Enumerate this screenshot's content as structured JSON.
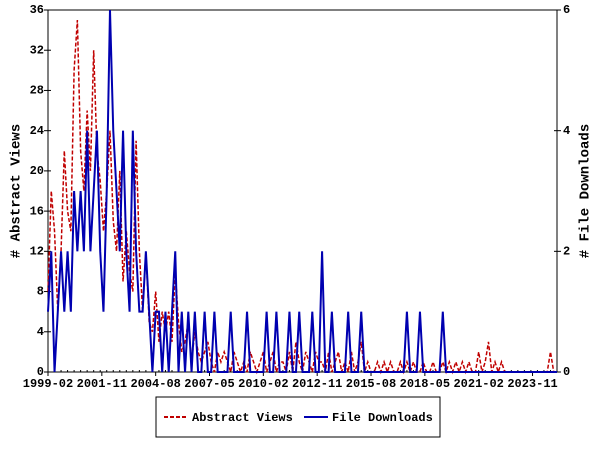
{
  "chart_data": {
    "type": "line",
    "x": [
      "1999-02",
      "1999-04",
      "1999-06",
      "1999-08",
      "1999-10",
      "1999-12",
      "2000-02",
      "2000-04",
      "2000-06",
      "2000-08",
      "2000-10",
      "2000-12",
      "2001-02",
      "2001-04",
      "2001-06",
      "2001-08",
      "2001-10",
      "2001-12",
      "2002-02",
      "2002-04",
      "2002-06",
      "2002-08",
      "2002-10",
      "2002-12",
      "2003-02",
      "2003-04",
      "2003-06",
      "2003-08",
      "2003-10",
      "2003-12",
      "2004-02",
      "2004-04",
      "2004-06",
      "2004-08",
      "2004-10",
      "2004-12",
      "2005-02",
      "2005-04",
      "2005-06",
      "2005-08",
      "2005-10",
      "2005-12",
      "2006-02",
      "2006-04",
      "2006-06",
      "2006-08",
      "2006-10",
      "2006-12",
      "2007-02",
      "2007-04",
      "2007-06",
      "2007-08",
      "2007-10",
      "2007-12",
      "2008-02",
      "2008-04",
      "2008-06",
      "2008-08",
      "2008-10",
      "2008-12",
      "2009-02",
      "2009-04",
      "2009-06",
      "2009-08",
      "2009-10",
      "2009-12",
      "2010-02",
      "2010-04",
      "2010-06",
      "2010-08",
      "2010-10",
      "2010-12",
      "2011-02",
      "2011-04",
      "2011-06",
      "2011-08",
      "2011-10",
      "2011-12",
      "2012-02",
      "2012-04",
      "2012-06",
      "2012-08",
      "2012-10",
      "2012-12",
      "2013-02",
      "2013-04",
      "2013-06",
      "2013-08",
      "2013-10",
      "2013-12",
      "2014-02",
      "2014-04",
      "2014-06",
      "2014-08",
      "2014-10",
      "2014-12",
      "2015-02",
      "2015-04",
      "2015-06",
      "2015-08",
      "2015-10",
      "2015-12",
      "2016-02",
      "2016-04",
      "2016-06",
      "2016-08",
      "2016-10",
      "2016-12",
      "2017-02",
      "2017-04",
      "2017-06",
      "2017-08",
      "2017-10",
      "2017-12",
      "2018-02",
      "2018-04",
      "2018-06",
      "2018-08",
      "2018-10",
      "2018-12",
      "2019-02",
      "2019-04",
      "2019-06",
      "2019-08",
      "2019-10",
      "2019-12",
      "2020-02",
      "2020-04",
      "2020-06",
      "2020-08",
      "2020-10",
      "2020-12",
      "2021-02",
      "2021-04",
      "2021-06",
      "2021-08",
      "2021-10",
      "2021-12",
      "2022-02",
      "2022-04",
      "2022-06",
      "2022-08",
      "2022-10",
      "2022-12",
      "2023-02",
      "2023-04",
      "2023-06",
      "2023-08",
      "2023-10",
      "2023-12",
      "2024-02",
      "2024-04",
      "2024-06",
      "2024-08",
      "2024-10",
      "2024-12",
      "2025-02"
    ],
    "series": [
      {
        "name": "Abstract Views",
        "color": "#c00000",
        "dash": true,
        "axis": "y",
        "values": [
          8,
          18,
          14,
          6,
          12,
          22,
          16,
          14,
          30,
          35,
          22,
          18,
          26,
          20,
          32,
          22,
          19,
          14,
          18,
          24,
          15,
          12,
          20,
          9,
          14,
          10,
          8,
          23,
          12,
          6,
          12,
          5,
          4,
          8,
          3,
          6,
          4,
          6,
          3,
          10,
          5,
          2,
          3,
          5,
          1,
          4,
          2,
          1,
          2,
          3,
          1,
          0,
          2,
          1,
          2,
          1,
          0,
          2,
          1,
          0,
          1,
          0,
          2,
          1,
          0,
          1,
          2,
          0,
          1,
          2,
          0,
          1,
          1,
          0,
          2,
          0,
          3,
          1,
          0,
          2,
          1,
          0,
          2,
          1,
          1,
          0,
          2,
          0,
          1,
          2,
          0,
          1,
          0,
          2,
          0,
          1,
          3,
          0,
          1,
          0,
          0,
          1,
          0,
          1,
          0,
          1,
          0,
          0,
          1,
          0,
          1,
          0,
          1,
          0,
          0,
          1,
          0,
          0,
          1,
          0,
          0,
          1,
          0,
          1,
          0,
          1,
          0,
          1,
          0,
          1,
          0,
          0,
          2,
          0,
          1,
          3,
          0,
          1,
          0,
          1,
          0,
          0,
          0,
          0,
          0,
          0,
          0,
          0,
          0,
          0,
          0,
          0,
          0,
          0,
          2,
          0,
          0
        ]
      },
      {
        "name": "File Downloads",
        "color": "#0000b0",
        "dash": false,
        "axis": "y2",
        "values": [
          1,
          2,
          0,
          1,
          2,
          1,
          2,
          1,
          3,
          2,
          3,
          2,
          4,
          2,
          3,
          4,
          2,
          1,
          3,
          6,
          4,
          3,
          2,
          4,
          2,
          1,
          4,
          2,
          1,
          1,
          2,
          1,
          0,
          1,
          1,
          0,
          1,
          0,
          1,
          2,
          0,
          1,
          0,
          1,
          0,
          1,
          0,
          0,
          1,
          0,
          0,
          1,
          0,
          0,
          0,
          0,
          1,
          0,
          0,
          0,
          0,
          1,
          0,
          0,
          0,
          0,
          0,
          1,
          0,
          0,
          1,
          0,
          0,
          0,
          1,
          0,
          0,
          1,
          0,
          0,
          0,
          1,
          0,
          0,
          2,
          0,
          0,
          1,
          0,
          0,
          0,
          0,
          1,
          0,
          0,
          0,
          1,
          0,
          0,
          0,
          0,
          0,
          0,
          0,
          0,
          0,
          0,
          0,
          0,
          0,
          1,
          0,
          0,
          0,
          1,
          0,
          0,
          0,
          0,
          0,
          0,
          1,
          0,
          0,
          0,
          0,
          0,
          0,
          0,
          0,
          0,
          0,
          0,
          0,
          0,
          0,
          0,
          0,
          0,
          0,
          0,
          0,
          0,
          0,
          0,
          0,
          0,
          0,
          0,
          0,
          0,
          0,
          0,
          0,
          0,
          0,
          0
        ]
      }
    ],
    "xlim": [
      "1999-02",
      "2025-02"
    ],
    "xticks": [
      "1999-02",
      "2001-11",
      "2004-08",
      "2007-05",
      "2010-02",
      "2012-11",
      "2015-08",
      "2018-05",
      "2021-02",
      "2023-11"
    ],
    "ylabel": "# Abstract Views",
    "ylim": [
      0,
      36
    ],
    "yticks": [
      0,
      4,
      8,
      12,
      16,
      20,
      24,
      28,
      32,
      36
    ],
    "y2label": "# File Downloads",
    "y2lim": [
      0,
      6
    ],
    "y2ticks": [
      0,
      2,
      4,
      6
    ],
    "legend": "bottom"
  }
}
